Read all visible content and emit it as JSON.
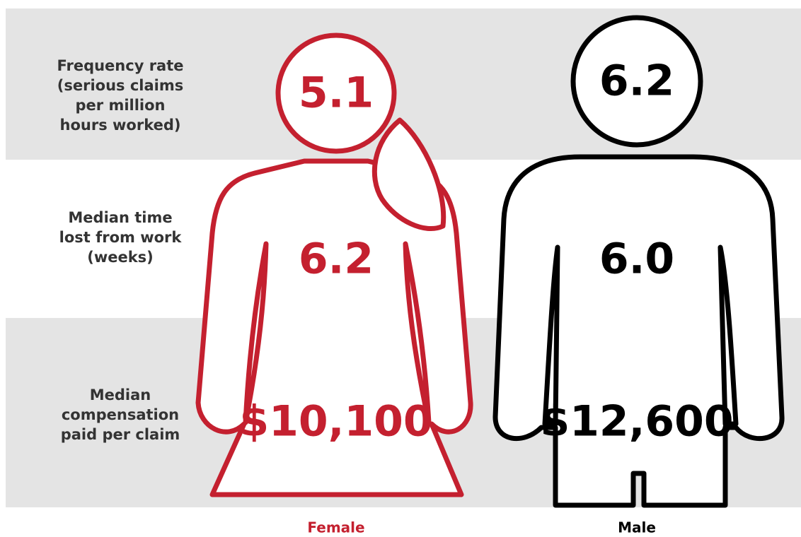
{
  "rows": [
    {
      "label_lines": [
        "Frequency rate",
        "(serious claims",
        "per million",
        "hours worked)"
      ]
    },
    {
      "label_lines": [
        "Median time",
        "lost from work",
        "(weeks)"
      ]
    },
    {
      "label_lines": [
        "Median",
        "compensation",
        "paid per claim"
      ]
    }
  ],
  "groups": [
    {
      "name": "Female",
      "color": "#c4202f",
      "values": [
        "5.1",
        "6.2",
        "$10,100"
      ]
    },
    {
      "name": "Male",
      "color": "#000000",
      "values": [
        "6.2",
        "6.0",
        "$12,600"
      ]
    }
  ]
}
